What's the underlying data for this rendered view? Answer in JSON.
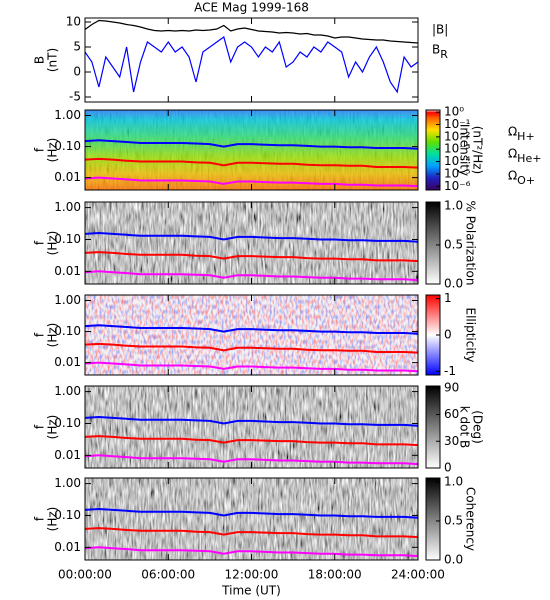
{
  "chart_data": [
    {
      "type": "line",
      "title": "ACE Mag 1999-168",
      "ylabel": [
        "B",
        "(nT)"
      ],
      "xlim": [
        0,
        24
      ],
      "xticks": [
        0,
        6,
        12,
        18,
        24
      ],
      "ylim": [
        -6,
        10.8
      ],
      "yticks": [
        -5,
        0,
        5,
        10
      ],
      "x": [
        0,
        0.5,
        1,
        1.5,
        2,
        2.5,
        3,
        3.5,
        4,
        4.5,
        5,
        5.5,
        6,
        6.5,
        7,
        7.5,
        8,
        8.5,
        9,
        9.5,
        10,
        10.5,
        11,
        11.5,
        12,
        12.5,
        13,
        13.5,
        14,
        14.5,
        15,
        15.5,
        16,
        16.5,
        17,
        17.5,
        18,
        18.5,
        19,
        19.5,
        20,
        20.5,
        21,
        21.5,
        22,
        22.5,
        23,
        23.5,
        24
      ],
      "legend": "right",
      "series": [
        {
          "name": "|B|",
          "color": "#000000",
          "values": [
            8.5,
            9.5,
            10.3,
            10.2,
            10,
            9.8,
            9.5,
            9.3,
            9,
            8.6,
            8.3,
            8.2,
            8.3,
            8.2,
            8.3,
            8.2,
            8.4,
            8.3,
            8.4,
            8.6,
            9.3,
            8.2,
            8.6,
            8.8,
            8.5,
            8.2,
            8.1,
            8,
            7.8,
            7.9,
            7.8,
            7.6,
            7.7,
            7.4,
            7.4,
            7.2,
            6.8,
            7,
            7,
            6.8,
            6.6,
            6.5,
            6.4,
            6.4,
            6.2,
            6.1,
            6,
            5.9,
            5.8
          ]
        },
        {
          "name": "BR",
          "color": "#0000ff",
          "values": [
            4,
            2,
            -3,
            3,
            1,
            -1,
            5,
            -4,
            2,
            6,
            5,
            4,
            6,
            4,
            5,
            3,
            -2,
            4,
            5,
            6,
            7,
            2,
            5,
            6,
            5,
            3,
            5,
            4,
            6,
            1,
            2,
            4,
            3,
            5,
            4,
            6,
            5,
            4,
            -1,
            2,
            0,
            3,
            5,
            2,
            -2,
            -4,
            3,
            1,
            2
          ]
        }
      ]
    },
    {
      "type": "spectrogram",
      "ylabel": [
        "f",
        "(Hz)"
      ],
      "ylog": true,
      "colormap": "rainbow",
      "xlim": [
        0,
        24
      ],
      "xticks": [
        0,
        6,
        12,
        18,
        24
      ],
      "ylim": [
        0.004,
        1.5
      ],
      "yticks": [
        0.01,
        {
          "value": 0.1,
          "label": "0.10"
        },
        {
          "value": 1,
          "label": "1.00"
        }
      ],
      "colorbar": {
        "log": true,
        "lim": [
          5e-07,
          1.5
        ],
        "label": [
          "Intensity",
          "(nT²/Hz)"
        ],
        "ticks": [
          {
            "value": 1,
            "label": "10⁰"
          },
          {
            "value": 0.1,
            "label": "10⁻¹"
          },
          {
            "value": 0.01,
            "label": "10⁻²"
          },
          {
            "value": 0.001,
            "label": "10⁻³"
          },
          {
            "value": 0.0001,
            "label": "10⁻⁴"
          },
          {
            "value": 1e-05,
            "label": "10⁻⁵"
          },
          {
            "value": 1e-06,
            "label": "10⁻⁶"
          }
        ]
      },
      "legend": "right",
      "x": [
        0,
        1,
        2,
        3,
        4,
        5,
        6,
        7,
        8,
        9,
        10,
        11,
        12,
        13,
        14,
        15,
        16,
        17,
        18,
        19,
        20,
        21,
        22,
        23,
        24
      ],
      "series": [
        {
          "name": "ΩH+",
          "color": "#0000ff",
          "values": [
            0.15,
            0.16,
            0.15,
            0.14,
            0.13,
            0.13,
            0.13,
            0.13,
            0.125,
            0.12,
            0.1,
            0.12,
            0.12,
            0.115,
            0.11,
            0.11,
            0.105,
            0.1,
            0.1,
            0.095,
            0.095,
            0.09,
            0.09,
            0.09,
            0.085
          ]
        },
        {
          "name": "ΩHe+",
          "color": "#ff0000",
          "values": [
            0.038,
            0.04,
            0.038,
            0.035,
            0.033,
            0.033,
            0.033,
            0.033,
            0.031,
            0.03,
            0.025,
            0.03,
            0.03,
            0.029,
            0.028,
            0.028,
            0.026,
            0.025,
            0.025,
            0.024,
            0.024,
            0.022,
            0.022,
            0.022,
            0.021
          ]
        },
        {
          "name": "ΩO+",
          "color": "#ff00ff",
          "values": [
            0.0094,
            0.01,
            0.0094,
            0.0088,
            0.0081,
            0.0081,
            0.0081,
            0.0081,
            0.0078,
            0.0075,
            0.0063,
            0.0075,
            0.0075,
            0.0072,
            0.0069,
            0.0069,
            0.0066,
            0.0063,
            0.0063,
            0.0059,
            0.0059,
            0.0056,
            0.0056,
            0.0056,
            0.0053
          ]
        }
      ]
    },
    {
      "type": "spectrogram",
      "ylabel": [
        "f",
        "(Hz)"
      ],
      "ylog": true,
      "colormap": "gray",
      "xlim": [
        0,
        24
      ],
      "xticks": [
        0,
        6,
        12,
        18,
        24
      ],
      "ylim": [
        0.004,
        1.5
      ],
      "yticks": [
        0.01,
        {
          "value": 0.1,
          "label": "0.10"
        },
        {
          "value": 1,
          "label": "1.00"
        }
      ],
      "colorbar": {
        "lim": [
          0,
          1.05
        ],
        "label": [
          "% Polarization"
        ],
        "ticks": [
          {
            "value": 0,
            "label": "0.0"
          },
          0.5,
          {
            "value": 1,
            "label": "1.0"
          }
        ]
      },
      "x": [
        0,
        1,
        2,
        3,
        4,
        5,
        6,
        7,
        8,
        9,
        10,
        11,
        12,
        13,
        14,
        15,
        16,
        17,
        18,
        19,
        20,
        21,
        22,
        23,
        24
      ],
      "series": [
        {
          "color": "#0000ff",
          "values": [
            0.15,
            0.16,
            0.15,
            0.14,
            0.13,
            0.13,
            0.13,
            0.13,
            0.125,
            0.12,
            0.1,
            0.12,
            0.12,
            0.115,
            0.11,
            0.11,
            0.105,
            0.1,
            0.1,
            0.095,
            0.095,
            0.09,
            0.09,
            0.09,
            0.085
          ]
        },
        {
          "color": "#ff0000",
          "values": [
            0.038,
            0.04,
            0.038,
            0.035,
            0.033,
            0.033,
            0.033,
            0.033,
            0.031,
            0.03,
            0.025,
            0.03,
            0.03,
            0.029,
            0.028,
            0.028,
            0.026,
            0.025,
            0.025,
            0.024,
            0.024,
            0.022,
            0.022,
            0.022,
            0.021
          ]
        },
        {
          "color": "#ff00ff",
          "values": [
            0.0094,
            0.01,
            0.0094,
            0.0088,
            0.0081,
            0.0081,
            0.0081,
            0.0081,
            0.0078,
            0.0075,
            0.0063,
            0.0075,
            0.0075,
            0.0072,
            0.0069,
            0.0069,
            0.0066,
            0.0063,
            0.0063,
            0.0059,
            0.0059,
            0.0056,
            0.0056,
            0.0056,
            0.0053
          ]
        }
      ]
    },
    {
      "type": "spectrogram",
      "ylabel": [
        "f",
        "(Hz)"
      ],
      "ylog": true,
      "colormap": "bwr",
      "xlim": [
        0,
        24
      ],
      "xticks": [
        0,
        6,
        12,
        18,
        24
      ],
      "ylim": [
        0.004,
        1.5
      ],
      "yticks": [
        0.01,
        {
          "value": 0.1,
          "label": "0.10"
        },
        {
          "value": 1,
          "label": "1.00"
        }
      ],
      "colorbar": {
        "lim": [
          -1.1,
          1.1
        ],
        "label": [
          "Ellipticity"
        ],
        "ticks": [
          -1,
          0,
          1
        ]
      },
      "x": [
        0,
        1,
        2,
        3,
        4,
        5,
        6,
        7,
        8,
        9,
        10,
        11,
        12,
        13,
        14,
        15,
        16,
        17,
        18,
        19,
        20,
        21,
        22,
        23,
        24
      ],
      "series": [
        {
          "color": "#0000ff",
          "values": [
            0.15,
            0.16,
            0.15,
            0.14,
            0.13,
            0.13,
            0.13,
            0.13,
            0.125,
            0.12,
            0.1,
            0.12,
            0.12,
            0.115,
            0.11,
            0.11,
            0.105,
            0.1,
            0.1,
            0.095,
            0.095,
            0.09,
            0.09,
            0.09,
            0.085
          ]
        },
        {
          "color": "#ff0000",
          "values": [
            0.038,
            0.04,
            0.038,
            0.035,
            0.033,
            0.033,
            0.033,
            0.033,
            0.031,
            0.03,
            0.025,
            0.03,
            0.03,
            0.029,
            0.028,
            0.028,
            0.026,
            0.025,
            0.025,
            0.024,
            0.024,
            0.022,
            0.022,
            0.022,
            0.021
          ]
        },
        {
          "color": "#ff00ff",
          "values": [
            0.0094,
            0.01,
            0.0094,
            0.0088,
            0.0081,
            0.0081,
            0.0081,
            0.0081,
            0.0078,
            0.0075,
            0.0063,
            0.0075,
            0.0075,
            0.0072,
            0.0069,
            0.0069,
            0.0066,
            0.0063,
            0.0063,
            0.0059,
            0.0059,
            0.0056,
            0.0056,
            0.0056,
            0.0053
          ]
        }
      ]
    },
    {
      "type": "spectrogram",
      "ylabel": [
        "f",
        "(Hz)"
      ],
      "ylog": true,
      "colormap": "gray",
      "xlim": [
        0,
        24
      ],
      "xticks": [
        0,
        6,
        12,
        18,
        24
      ],
      "ylim": [
        0.004,
        1.5
      ],
      "yticks": [
        0.01,
        {
          "value": 0.1,
          "label": "0.10"
        },
        {
          "value": 1,
          "label": "1.00"
        }
      ],
      "colorbar": {
        "lim": [
          0,
          92
        ],
        "label": [
          "k dot B",
          "(Deg)"
        ],
        "ticks": [
          0,
          30,
          60,
          90
        ]
      },
      "x": [
        0,
        1,
        2,
        3,
        4,
        5,
        6,
        7,
        8,
        9,
        10,
        11,
        12,
        13,
        14,
        15,
        16,
        17,
        18,
        19,
        20,
        21,
        22,
        23,
        24
      ],
      "series": [
        {
          "color": "#0000ff",
          "values": [
            0.15,
            0.16,
            0.15,
            0.14,
            0.13,
            0.13,
            0.13,
            0.13,
            0.125,
            0.12,
            0.1,
            0.12,
            0.12,
            0.115,
            0.11,
            0.11,
            0.105,
            0.1,
            0.1,
            0.095,
            0.095,
            0.09,
            0.09,
            0.09,
            0.085
          ]
        },
        {
          "color": "#ff0000",
          "values": [
            0.038,
            0.04,
            0.038,
            0.035,
            0.033,
            0.033,
            0.033,
            0.033,
            0.031,
            0.03,
            0.025,
            0.03,
            0.03,
            0.029,
            0.028,
            0.028,
            0.026,
            0.025,
            0.025,
            0.024,
            0.024,
            0.022,
            0.022,
            0.022,
            0.021
          ]
        },
        {
          "color": "#ff00ff",
          "values": [
            0.0094,
            0.01,
            0.0094,
            0.0088,
            0.0081,
            0.0081,
            0.0081,
            0.0081,
            0.0078,
            0.0075,
            0.0063,
            0.0075,
            0.0075,
            0.0072,
            0.0069,
            0.0069,
            0.0066,
            0.0063,
            0.0063,
            0.0059,
            0.0059,
            0.0056,
            0.0056,
            0.0056,
            0.0053
          ]
        }
      ]
    },
    {
      "type": "spectrogram",
      "ylabel": [
        "f",
        "(Hz)"
      ],
      "ylog": true,
      "colormap": "gray",
      "xlabel": "Time (UT)",
      "xlim": [
        0,
        24
      ],
      "xticks": [
        {
          "value": 0,
          "label": "00:00:00"
        },
        {
          "value": 6,
          "label": "06:00:00"
        },
        {
          "value": 12,
          "label": "12:00:00"
        },
        {
          "value": 18,
          "label": "18:00:00"
        },
        {
          "value": 24,
          "label": "24:00:00"
        }
      ],
      "ylim": [
        0.004,
        1.5
      ],
      "yticks": [
        0.01,
        {
          "value": 0.1,
          "label": "0.10"
        },
        {
          "value": 1,
          "label": "1.00"
        }
      ],
      "colorbar": {
        "lim": [
          0,
          1.05
        ],
        "label": [
          "Coherency"
        ],
        "ticks": [
          {
            "value": 0,
            "label": "0.0"
          },
          0.5,
          {
            "value": 1,
            "label": "1.0"
          }
        ]
      },
      "x": [
        0,
        1,
        2,
        3,
        4,
        5,
        6,
        7,
        8,
        9,
        10,
        11,
        12,
        13,
        14,
        15,
        16,
        17,
        18,
        19,
        20,
        21,
        22,
        23,
        24
      ],
      "series": [
        {
          "color": "#0000ff",
          "values": [
            0.15,
            0.16,
            0.15,
            0.14,
            0.13,
            0.13,
            0.13,
            0.13,
            0.125,
            0.12,
            0.1,
            0.12,
            0.12,
            0.115,
            0.11,
            0.11,
            0.105,
            0.1,
            0.1,
            0.095,
            0.095,
            0.09,
            0.09,
            0.09,
            0.085
          ]
        },
        {
          "color": "#ff0000",
          "values": [
            0.038,
            0.04,
            0.038,
            0.035,
            0.033,
            0.033,
            0.033,
            0.033,
            0.031,
            0.03,
            0.025,
            0.03,
            0.03,
            0.029,
            0.028,
            0.028,
            0.026,
            0.025,
            0.025,
            0.024,
            0.024,
            0.022,
            0.022,
            0.022,
            0.021
          ]
        },
        {
          "color": "#ff00ff",
          "values": [
            0.0094,
            0.01,
            0.0094,
            0.0088,
            0.0081,
            0.0081,
            0.0081,
            0.0081,
            0.0078,
            0.0075,
            0.0063,
            0.0075,
            0.0075,
            0.0072,
            0.0069,
            0.0069,
            0.0066,
            0.0063,
            0.0063,
            0.0059,
            0.0059,
            0.0056,
            0.0056,
            0.0056,
            0.0053
          ]
        }
      ]
    }
  ]
}
